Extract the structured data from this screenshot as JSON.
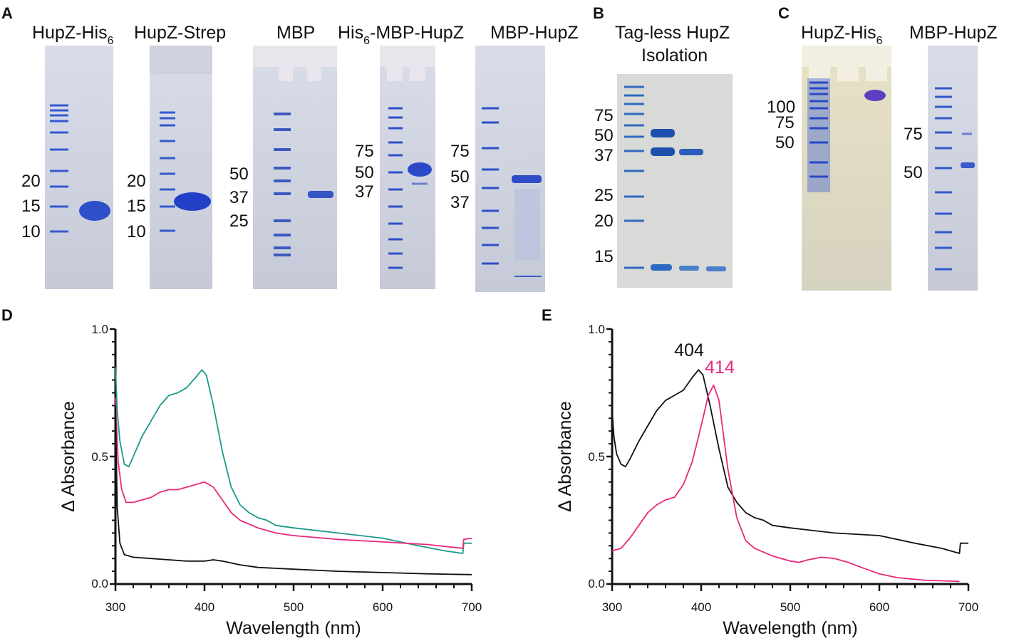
{
  "colors": {
    "teal": "#1a9a8a",
    "pink": "#e8287a",
    "black": "#111111",
    "band": "#2f4fc8",
    "gel": "#dde0ea"
  },
  "panels": {
    "A": "A",
    "B": "B",
    "C": "C",
    "D": "D",
    "E": "E"
  },
  "gel_titles": {
    "hupz_his6_a": "HupZ-His",
    "hupz_his6_a_sub": "6",
    "hupz_strep": "HupZ-Strep",
    "mbp": "MBP",
    "his6_mbp_hupz": "His",
    "his6_mbp_hupz_sub": "6",
    "his6_mbp_hupz_rest": "-MBP-HupZ",
    "mbp_hupz_a": "MBP-HupZ",
    "tagless_line1": "Tag-less HupZ",
    "tagless_line2": "Isolation",
    "hupz_his6_c": "HupZ-His",
    "hupz_his6_c_sub": "6",
    "mbp_hupz_c": "MBP-HupZ"
  },
  "markers": {
    "gel1": [
      "20",
      "15",
      "10"
    ],
    "gel2": [
      "20",
      "15",
      "10"
    ],
    "gel3": [
      "50",
      "37",
      "25"
    ],
    "gel4": [
      "75",
      "50",
      "37"
    ],
    "gel5": [
      "75",
      "50",
      "37"
    ],
    "gel6": [
      "75",
      "50",
      "37",
      "25",
      "20",
      "15"
    ],
    "gel7": [
      "100",
      "75",
      "50"
    ],
    "gel8": [
      "75",
      "50"
    ]
  },
  "chart_data": [
    {
      "panel": "D",
      "type": "line",
      "xlabel": "Wavelength (nm)",
      "ylabel": "Δ Absorbance",
      "xlim": [
        300,
        700
      ],
      "ylim": [
        0.0,
        1.0
      ],
      "xticks": [
        "300",
        "400",
        "500",
        "600",
        "700"
      ],
      "yticks": [
        "0.0",
        "0.5",
        "1.0"
      ],
      "series": [
        {
          "name": "teal",
          "color": "#1a9a8a",
          "points": [
            [
              300,
              0.85
            ],
            [
              302,
              0.68
            ],
            [
              305,
              0.56
            ],
            [
              310,
              0.47
            ],
            [
              315,
              0.46
            ],
            [
              320,
              0.5
            ],
            [
              330,
              0.58
            ],
            [
              340,
              0.64
            ],
            [
              350,
              0.7
            ],
            [
              360,
              0.74
            ],
            [
              370,
              0.75
            ],
            [
              380,
              0.77
            ],
            [
              390,
              0.81
            ],
            [
              397,
              0.84
            ],
            [
              402,
              0.82
            ],
            [
              410,
              0.7
            ],
            [
              420,
              0.52
            ],
            [
              430,
              0.38
            ],
            [
              440,
              0.31
            ],
            [
              450,
              0.28
            ],
            [
              460,
              0.26
            ],
            [
              470,
              0.25
            ],
            [
              480,
              0.23
            ],
            [
              500,
              0.22
            ],
            [
              550,
              0.2
            ],
            [
              600,
              0.18
            ],
            [
              640,
              0.15
            ],
            [
              670,
              0.13
            ],
            [
              690,
              0.12
            ],
            [
              691,
              0.16
            ],
            [
              700,
              0.16
            ]
          ]
        },
        {
          "name": "pink",
          "color": "#e8287a",
          "points": [
            [
              300,
              0.73
            ],
            [
              303,
              0.48
            ],
            [
              307,
              0.37
            ],
            [
              312,
              0.32
            ],
            [
              320,
              0.32
            ],
            [
              330,
              0.33
            ],
            [
              340,
              0.34
            ],
            [
              350,
              0.36
            ],
            [
              360,
              0.37
            ],
            [
              370,
              0.37
            ],
            [
              380,
              0.38
            ],
            [
              390,
              0.39
            ],
            [
              400,
              0.4
            ],
            [
              410,
              0.38
            ],
            [
              420,
              0.33
            ],
            [
              430,
              0.28
            ],
            [
              440,
              0.25
            ],
            [
              460,
              0.22
            ],
            [
              480,
              0.2
            ],
            [
              500,
              0.19
            ],
            [
              550,
              0.175
            ],
            [
              600,
              0.165
            ],
            [
              650,
              0.155
            ],
            [
              690,
              0.14
            ],
            [
              691,
              0.175
            ],
            [
              700,
              0.18
            ]
          ]
        },
        {
          "name": "black",
          "color": "#111111",
          "points": [
            [
              300,
              0.7
            ],
            [
              302,
              0.3
            ],
            [
              305,
              0.16
            ],
            [
              310,
              0.115
            ],
            [
              320,
              0.105
            ],
            [
              340,
              0.1
            ],
            [
              360,
              0.095
            ],
            [
              380,
              0.09
            ],
            [
              400,
              0.09
            ],
            [
              410,
              0.095
            ],
            [
              420,
              0.09
            ],
            [
              440,
              0.075
            ],
            [
              460,
              0.065
            ],
            [
              500,
              0.058
            ],
            [
              550,
              0.05
            ],
            [
              600,
              0.045
            ],
            [
              650,
              0.04
            ],
            [
              700,
              0.037
            ]
          ]
        }
      ]
    },
    {
      "panel": "E",
      "type": "line",
      "xlabel": "Wavelength (nm)",
      "ylabel": "Δ Absorbance",
      "xlim": [
        300,
        700
      ],
      "ylim": [
        0.0,
        1.0
      ],
      "xticks": [
        "300",
        "400",
        "500",
        "600",
        "700"
      ],
      "yticks": [
        "0.0",
        "0.5",
        "1.0"
      ],
      "annotations": [
        {
          "text": "404",
          "color": "#111111",
          "x": 404,
          "y": 0.86
        },
        {
          "text": "414",
          "color": "#e8287a",
          "x": 414,
          "y": 0.81
        }
      ],
      "series": [
        {
          "name": "black",
          "color": "#111111",
          "points": [
            [
              300,
              0.68
            ],
            [
              302,
              0.58
            ],
            [
              305,
              0.51
            ],
            [
              310,
              0.47
            ],
            [
              315,
              0.46
            ],
            [
              320,
              0.49
            ],
            [
              330,
              0.56
            ],
            [
              340,
              0.62
            ],
            [
              350,
              0.68
            ],
            [
              360,
              0.72
            ],
            [
              370,
              0.74
            ],
            [
              380,
              0.76
            ],
            [
              390,
              0.81
            ],
            [
              397,
              0.84
            ],
            [
              402,
              0.82
            ],
            [
              410,
              0.7
            ],
            [
              420,
              0.53
            ],
            [
              430,
              0.38
            ],
            [
              440,
              0.32
            ],
            [
              450,
              0.28
            ],
            [
              460,
              0.26
            ],
            [
              470,
              0.25
            ],
            [
              480,
              0.23
            ],
            [
              500,
              0.22
            ],
            [
              550,
              0.2
            ],
            [
              600,
              0.19
            ],
            [
              640,
              0.16
            ],
            [
              670,
              0.14
            ],
            [
              690,
              0.12
            ],
            [
              691,
              0.16
            ],
            [
              700,
              0.16
            ]
          ]
        },
        {
          "name": "pink",
          "color": "#e8287a",
          "points": [
            [
              300,
              0.13
            ],
            [
              310,
              0.14
            ],
            [
              320,
              0.18
            ],
            [
              330,
              0.23
            ],
            [
              340,
              0.28
            ],
            [
              350,
              0.31
            ],
            [
              360,
              0.33
            ],
            [
              370,
              0.34
            ],
            [
              380,
              0.39
            ],
            [
              390,
              0.48
            ],
            [
              400,
              0.62
            ],
            [
              408,
              0.74
            ],
            [
              414,
              0.78
            ],
            [
              420,
              0.72
            ],
            [
              430,
              0.45
            ],
            [
              440,
              0.26
            ],
            [
              450,
              0.17
            ],
            [
              460,
              0.14
            ],
            [
              480,
              0.11
            ],
            [
              500,
              0.09
            ],
            [
              510,
              0.085
            ],
            [
              520,
              0.095
            ],
            [
              535,
              0.105
            ],
            [
              550,
              0.1
            ],
            [
              565,
              0.085
            ],
            [
              580,
              0.065
            ],
            [
              600,
              0.04
            ],
            [
              620,
              0.025
            ],
            [
              650,
              0.015
            ],
            [
              690,
              0.01
            ]
          ]
        }
      ]
    }
  ]
}
